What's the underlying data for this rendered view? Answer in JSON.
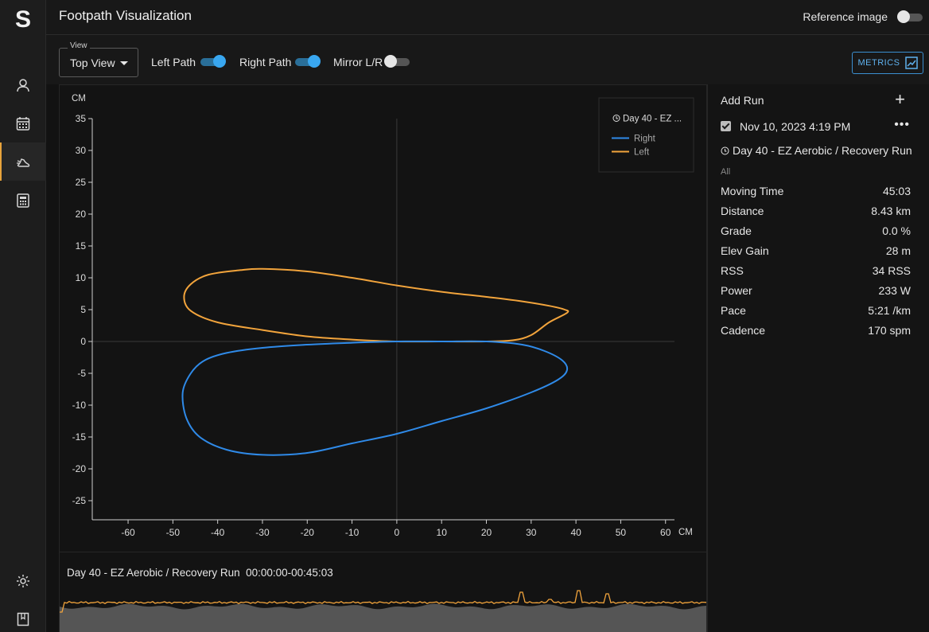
{
  "app": {
    "logo": "S",
    "title": "Footpath Visualization"
  },
  "header": {
    "reference_label": "Reference image",
    "reference_on": false
  },
  "toolbar": {
    "view_label": "View",
    "view_value": "Top View",
    "left_path_label": "Left Path",
    "left_path_on": true,
    "right_path_label": "Right Path",
    "right_path_on": true,
    "mirror_label": "Mirror L/R",
    "mirror_on": false,
    "metrics_label": "METRICS"
  },
  "sidebar": {
    "items": [
      {
        "icon": "user-icon",
        "active": false
      },
      {
        "icon": "calendar-icon",
        "active": false
      },
      {
        "icon": "running-shoe-icon",
        "active": true
      },
      {
        "icon": "calculator-icon",
        "active": false
      }
    ],
    "bottom": [
      {
        "icon": "gear-icon"
      },
      {
        "icon": "book-icon"
      }
    ]
  },
  "plot": {
    "legend_title": "Day 40 - EZ ...",
    "legend": [
      {
        "name": "Right",
        "color": "#2f8ae8"
      },
      {
        "name": "Left",
        "color": "#f2a43c"
      }
    ],
    "x_unit": "CM",
    "y_unit": "CM",
    "x_ticks": [
      "-60",
      "-50",
      "-40",
      "-30",
      "-20",
      "-10",
      "0",
      "10",
      "20",
      "30",
      "40",
      "50",
      "60"
    ],
    "y_ticks": [
      "35",
      "30",
      "25",
      "20",
      "15",
      "10",
      "5",
      "0",
      "-5",
      "-10",
      "-15",
      "-20",
      "-25"
    ]
  },
  "chart_data": {
    "type": "line",
    "xlabel": "CM",
    "ylabel": "CM",
    "xlim": [
      -68,
      62
    ],
    "ylim": [
      -28,
      35
    ],
    "series": [
      {
        "name": "Left",
        "color": "#f2a43c",
        "points": [
          [
            38,
            4.5
          ],
          [
            34,
            3
          ],
          [
            30,
            1
          ],
          [
            26,
            0.2
          ],
          [
            20,
            0
          ],
          [
            10,
            0
          ],
          [
            0,
            0
          ],
          [
            -10,
            0.3
          ],
          [
            -20,
            0.8
          ],
          [
            -30,
            1.8
          ],
          [
            -40,
            3
          ],
          [
            -46,
            4.8
          ],
          [
            -47.5,
            7
          ],
          [
            -46,
            9
          ],
          [
            -42,
            10.5
          ],
          [
            -35,
            11.2
          ],
          [
            -30,
            11.4
          ],
          [
            -20,
            11
          ],
          [
            -10,
            10
          ],
          [
            0,
            8.8
          ],
          [
            10,
            7.8
          ],
          [
            20,
            7
          ],
          [
            28,
            6.3
          ],
          [
            34,
            5.6
          ],
          [
            37.5,
            5
          ],
          [
            38,
            4.5
          ]
        ]
      },
      {
        "name": "Right",
        "color": "#2f8ae8",
        "points": [
          [
            38,
            -4.5
          ],
          [
            37,
            -3
          ],
          [
            33,
            -1.5
          ],
          [
            28,
            -0.5
          ],
          [
            20,
            0
          ],
          [
            10,
            0
          ],
          [
            0,
            0
          ],
          [
            -10,
            -0.2
          ],
          [
            -20,
            -0.5
          ],
          [
            -30,
            -1
          ],
          [
            -38,
            -1.8
          ],
          [
            -43,
            -3
          ],
          [
            -46,
            -5
          ],
          [
            -47.8,
            -8
          ],
          [
            -47,
            -12
          ],
          [
            -44,
            -15
          ],
          [
            -38,
            -17
          ],
          [
            -30,
            -17.8
          ],
          [
            -20,
            -17.5
          ],
          [
            -10,
            -16
          ],
          [
            0,
            -14.5
          ],
          [
            10,
            -12.5
          ],
          [
            20,
            -10.5
          ],
          [
            30,
            -8
          ],
          [
            36,
            -6
          ],
          [
            38,
            -4.5
          ]
        ]
      }
    ]
  },
  "run_panel": {
    "add_run_label": "Add Run",
    "plus_symbol": "+",
    "run_date": "Nov 10, 2023 4:19 PM",
    "more_symbol": "•••",
    "run_name": "Day 40 - EZ Aerobic / Recovery Run",
    "filter_label": "All",
    "metrics": [
      {
        "label": "Moving Time",
        "value": "45:03"
      },
      {
        "label": "Distance",
        "value": "8.43 km"
      },
      {
        "label": "Grade",
        "value": "0.0 %"
      },
      {
        "label": "Elev Gain",
        "value": "28 m"
      },
      {
        "label": "RSS",
        "value": "34 RSS"
      },
      {
        "label": "Power",
        "value": "233 W"
      },
      {
        "label": "Pace",
        "value": "5:21 /km"
      },
      {
        "label": "Cadence",
        "value": "170 spm"
      }
    ]
  },
  "timeline": {
    "title": "Day 40 - EZ Aerobic / Recovery Run",
    "range": "00:00:00-00:45:03",
    "line_color": "#f2a43c",
    "area_color": "#555555"
  }
}
